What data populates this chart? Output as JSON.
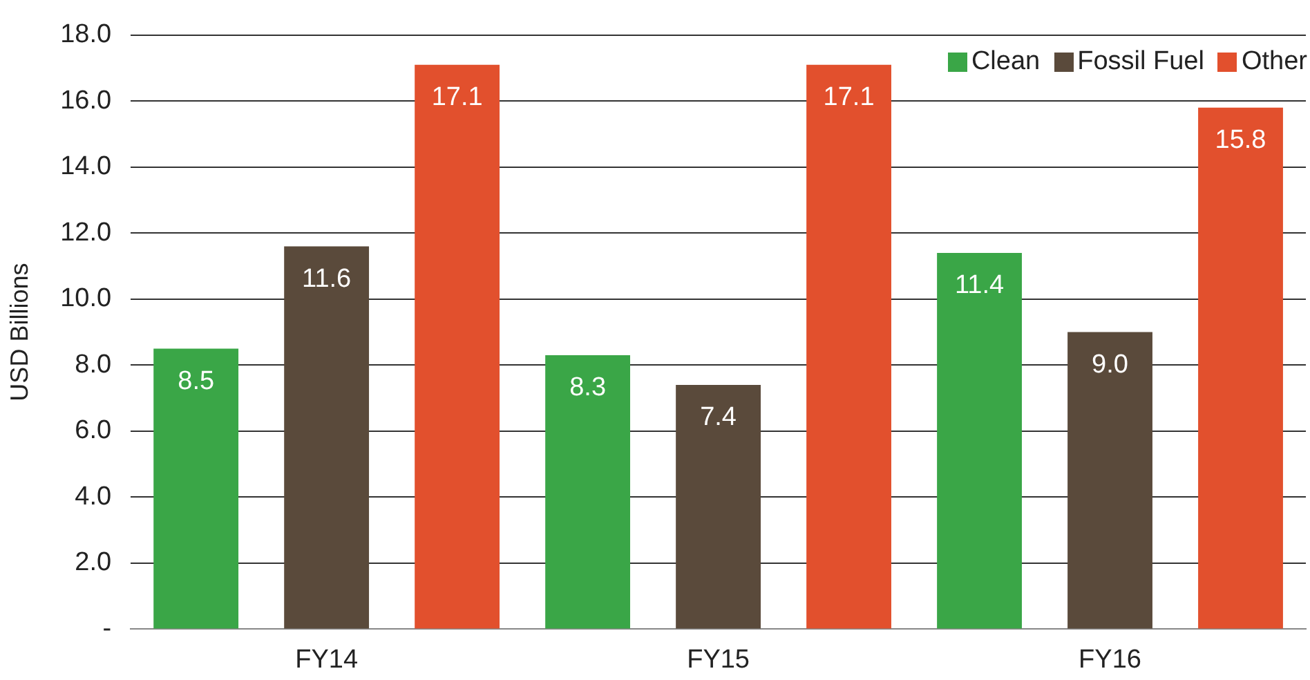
{
  "chart_data": {
    "type": "bar",
    "ylabel": "USD Billions",
    "categories": [
      "FY14",
      "FY15",
      "FY16"
    ],
    "series": [
      {
        "name": "Clean",
        "color": "#3aa647",
        "values": [
          8.5,
          8.3,
          11.4
        ],
        "value_labels": [
          "8.5",
          "8.3",
          "11.4"
        ]
      },
      {
        "name": "Fossil Fuel",
        "color": "#5a4a3b",
        "values": [
          11.6,
          7.4,
          9.0
        ],
        "value_labels": [
          "11.6",
          "7.4",
          "9.0"
        ]
      },
      {
        "name": "Other",
        "color": "#e2502d",
        "values": [
          17.1,
          17.1,
          15.8
        ],
        "value_labels": [
          "17.1",
          "17.1",
          "15.8"
        ]
      }
    ],
    "ylim": [
      0,
      18
    ],
    "yticks": [
      {
        "value": 0,
        "label": "-"
      },
      {
        "value": 2,
        "label": "2.0"
      },
      {
        "value": 4,
        "label": "4.0"
      },
      {
        "value": 6,
        "label": "6.0"
      },
      {
        "value": 8,
        "label": "8.0"
      },
      {
        "value": 10,
        "label": "10.0"
      },
      {
        "value": 12,
        "label": "12.0"
      },
      {
        "value": 14,
        "label": "14.0"
      },
      {
        "value": 16,
        "label": "16.0"
      },
      {
        "value": 18,
        "label": "18.0"
      }
    ],
    "grid": "y",
    "legend": "top right"
  }
}
